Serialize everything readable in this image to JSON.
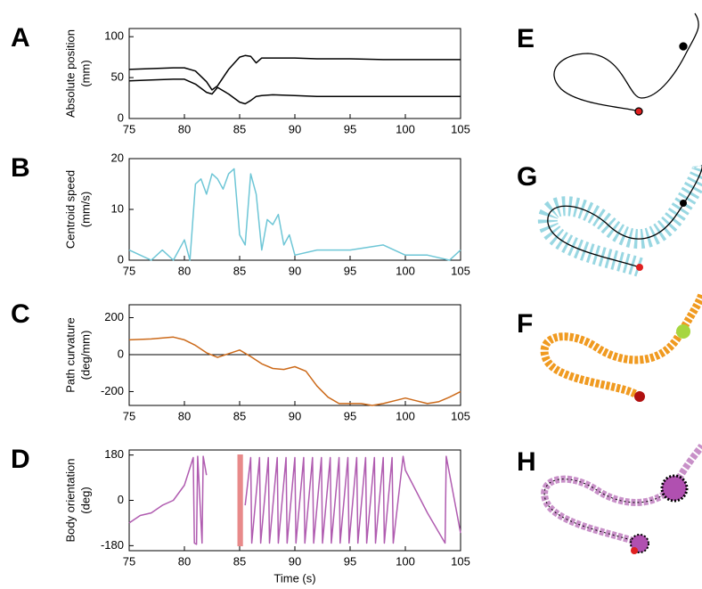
{
  "chart_data": [
    {
      "type": "line",
      "panel_label": "A",
      "ylabel": [
        "Absolute position",
        "(mm)"
      ],
      "x": [
        75,
        77,
        79,
        80,
        81,
        82,
        82.5,
        83,
        84,
        85,
        85.5,
        86,
        86.5,
        87,
        88,
        90,
        92,
        95,
        98,
        100,
        102,
        105
      ],
      "series": [
        {
          "color": "#000000",
          "values": [
            60,
            61,
            62,
            62,
            58,
            45,
            35,
            40,
            60,
            75,
            77,
            76,
            68,
            74,
            74,
            74,
            73,
            73,
            72,
            72,
            72,
            72
          ]
        },
        {
          "color": "#000000",
          "values": [
            46,
            47,
            48,
            48,
            42,
            32,
            30,
            38,
            30,
            20,
            18,
            22,
            27,
            28,
            29,
            28,
            27,
            27,
            27,
            27,
            27,
            27
          ]
        }
      ],
      "xlim": [
        75,
        105
      ],
      "xticks": [
        75,
        80,
        85,
        90,
        95,
        100,
        105
      ],
      "ylim": [
        0,
        110
      ],
      "yticks": [
        0,
        50,
        100
      ]
    },
    {
      "type": "line",
      "panel_label": "B",
      "ylabel": [
        "Centroid speed",
        "(mm/s)"
      ],
      "x": [
        75,
        76,
        77,
        78,
        79,
        80,
        80.5,
        81,
        81.5,
        82,
        82.5,
        83,
        83.5,
        84,
        84.5,
        85,
        85.5,
        86,
        86.5,
        87,
        87.5,
        88,
        88.5,
        89,
        89.5,
        90,
        92,
        95,
        98,
        100,
        102,
        104,
        105
      ],
      "series": [
        {
          "color": "#6ec6d6",
          "values": [
            2,
            1,
            0,
            2,
            0,
            4,
            0,
            15,
            16,
            13,
            17,
            16,
            14,
            17,
            18,
            5,
            3,
            17,
            13,
            2,
            8,
            7,
            9,
            3,
            5,
            1,
            2,
            2,
            3,
            1,
            1,
            0,
            2
          ]
        }
      ],
      "xlim": [
        75,
        105
      ],
      "xticks": [
        75,
        80,
        85,
        90,
        95,
        100,
        105
      ],
      "ylim": [
        0,
        20
      ],
      "yticks": [
        0,
        10,
        20
      ]
    },
    {
      "type": "line",
      "panel_label": "C",
      "ylabel": [
        "Path curvature",
        "(deg/mm)"
      ],
      "zero_line": true,
      "x": [
        75,
        77,
        79,
        80,
        81,
        82,
        83,
        84,
        85,
        86,
        87,
        88,
        89,
        90,
        91,
        92,
        93,
        94,
        95,
        96,
        97,
        98,
        99,
        100,
        101,
        102,
        103,
        104,
        105
      ],
      "series": [
        {
          "color": "#cc6a1a",
          "values": [
            80,
            85,
            95,
            80,
            50,
            10,
            -15,
            5,
            25,
            -10,
            -50,
            -75,
            -80,
            -65,
            -90,
            -170,
            -230,
            -265,
            -265,
            -265,
            -275,
            -265,
            -250,
            -235,
            -250,
            -265,
            -255,
            -230,
            -200
          ]
        }
      ],
      "xlim": [
        75,
        105
      ],
      "xticks": [
        75,
        80,
        85,
        90,
        95,
        100,
        105
      ],
      "ylim": [
        -275,
        270
      ],
      "yticks": [
        -200,
        0,
        200
      ]
    },
    {
      "type": "line",
      "panel_label": "D",
      "ylabel": [
        "Body orientation",
        "(deg)"
      ],
      "xlabel": "Time (s)",
      "highlight": {
        "x": [
          84.8,
          85.3
        ],
        "color": "#e88a8a"
      },
      "x": [
        75,
        76,
        77,
        78,
        79,
        80,
        80.8,
        80.9,
        81.1,
        81.2,
        81.6,
        81.7,
        82,
        84,
        85.5,
        86,
        86.1,
        86.8,
        86.9,
        87.6,
        87.7,
        88.4,
        88.5,
        89.2,
        89.3,
        90,
        90.1,
        90.8,
        90.9,
        91.6,
        91.7,
        92.4,
        92.5,
        93.2,
        93.3,
        94,
        94.1,
        94.8,
        94.9,
        95.6,
        95.7,
        96.4,
        96.5,
        97.2,
        97.3,
        98,
        98.1,
        98.8,
        98.9,
        99.8,
        100,
        102,
        103.6,
        103.7,
        105
      ],
      "series": [
        {
          "color": "#b05cb0",
          "values": [
            -90,
            -60,
            -50,
            -20,
            0,
            60,
            170,
            -170,
            -175,
            175,
            -170,
            175,
            100,
            null,
            -20,
            170,
            -170,
            170,
            -170,
            170,
            -170,
            170,
            -170,
            170,
            -170,
            170,
            -170,
            170,
            -170,
            170,
            -170,
            170,
            -170,
            170,
            -170,
            170,
            -170,
            170,
            -170,
            170,
            -170,
            170,
            -170,
            170,
            -170,
            170,
            -170,
            170,
            -170,
            175,
            120,
            -50,
            -170,
            175,
            -130
          ]
        }
      ],
      "xlim": [
        75,
        105
      ],
      "xticks": [
        75,
        80,
        85,
        90,
        95,
        100,
        105
      ],
      "ylim": [
        -200,
        200
      ],
      "yticks": [
        -180,
        0,
        180
      ]
    }
  ],
  "side_panels": [
    {
      "label": "E"
    },
    {
      "label": "G"
    },
    {
      "label": "F"
    },
    {
      "label": "H"
    }
  ]
}
